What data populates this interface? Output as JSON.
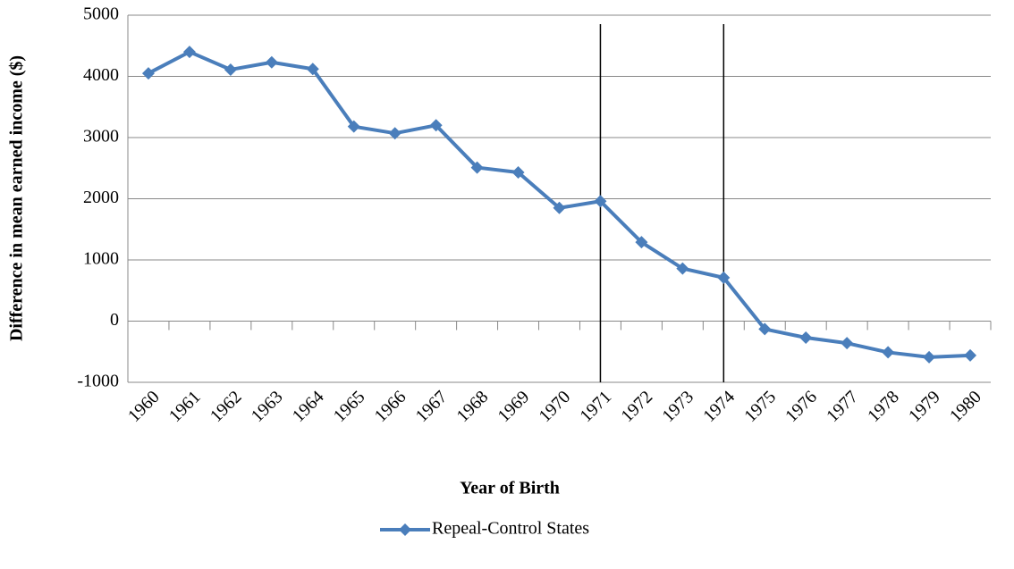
{
  "chart_data": {
    "type": "line",
    "x_label": "Year of Birth",
    "y_label": "Difference in mean earned income ($)",
    "categories": [
      "1960",
      "1961",
      "1962",
      "1963",
      "1964",
      "1965",
      "1966",
      "1967",
      "1968",
      "1969",
      "1970",
      "1971",
      "1972",
      "1973",
      "1974",
      "1975",
      "1976",
      "1977",
      "1978",
      "1979",
      "1980"
    ],
    "series": [
      {
        "name": "Repeal-Control States",
        "color": "#4a7ebb",
        "values": [
          4050,
          4400,
          4110,
          4230,
          4120,
          3180,
          3070,
          3200,
          2510,
          2430,
          1850,
          1960,
          1290,
          860,
          710,
          -130,
          -270,
          -360,
          -510,
          -590,
          -560
        ]
      }
    ],
    "vertical_lines_at": [
      "1971",
      "1974"
    ],
    "ylim": [
      -1000,
      5000
    ],
    "yticks": [
      -1000,
      0,
      1000,
      2000,
      3000,
      4000,
      5000
    ],
    "grid": true,
    "legend": "bottom"
  }
}
